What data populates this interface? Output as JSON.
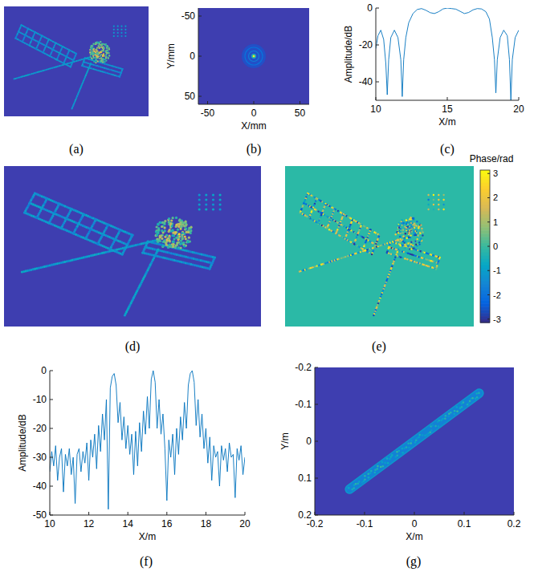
{
  "chart_data": [
    {
      "type": "image",
      "label": "(a)",
      "color": "#3e3eb0"
    },
    {
      "type": "image",
      "label": "(b)",
      "xlabel": "X/mm",
      "ylabel": "Y/mm",
      "xlim": [
        -60,
        60
      ],
      "ylim": [
        60,
        -60
      ],
      "xticks": [
        -50,
        0,
        50
      ],
      "yticks": [
        -50,
        0,
        50
      ],
      "peak": {
        "x": 0,
        "y": 0
      },
      "color": "#3e3eb0"
    },
    {
      "type": "line",
      "label": "(c)",
      "xlabel": "X/m",
      "ylabel": "Amplitude/dB",
      "xlim": [
        10,
        20
      ],
      "ylim": [
        -50,
        0
      ],
      "xticks": [
        10,
        15,
        20
      ],
      "yticks": [
        -40,
        -20,
        0
      ],
      "color": "#0072bd",
      "x": [
        10,
        10.15,
        10.35,
        10.55,
        10.7,
        10.8,
        10.9,
        11.05,
        11.3,
        11.55,
        11.75,
        11.85,
        11.95,
        12.1,
        12.3,
        12.6,
        12.9,
        13.2,
        13.5,
        13.8,
        14.1,
        14.4,
        14.7,
        15,
        15.3,
        15.6,
        15.9,
        16.2,
        16.5,
        16.8,
        17.1,
        17.4,
        17.7,
        17.95,
        18.15,
        18.3,
        18.4,
        18.5,
        18.7,
        18.95,
        19.2,
        19.35,
        19.45,
        19.55,
        19.75,
        20
      ],
      "values": [
        -22,
        -15,
        -12,
        -17,
        -30,
        -47,
        -28,
        -16,
        -12,
        -16,
        -28,
        -48,
        -28,
        -16,
        -8,
        -3,
        -0.8,
        -0.3,
        -1.2,
        -2.5,
        -3,
        -2,
        -0.5,
        0,
        -0.3,
        -0.6,
        -1.8,
        -3,
        -2.4,
        -1,
        -0.3,
        -0.5,
        -2,
        -6,
        -16,
        -28,
        -46,
        -28,
        -16,
        -12,
        -15,
        -28,
        -50,
        -28,
        -16,
        -12
      ]
    },
    {
      "type": "image",
      "label": "(d)",
      "color": "#3e3eb0"
    },
    {
      "type": "phase_map",
      "label": "(e)",
      "color": "#2bb9a6",
      "colorbar": {
        "label": "Phase/rad",
        "range": [
          -3.14,
          3.14
        ],
        "ticks": [
          3,
          2,
          1,
          0,
          -1,
          -2,
          -3
        ]
      }
    },
    {
      "type": "line",
      "label": "(f)",
      "xlabel": "X/m",
      "ylabel": "Amplitude/dB",
      "xlim": [
        10,
        20
      ],
      "ylim": [
        -50,
        0
      ],
      "xticks": [
        10,
        12,
        14,
        16,
        18,
        20
      ],
      "yticks": [
        -50,
        -40,
        -30,
        -20,
        -10,
        0
      ],
      "color": "#0072bd",
      "x": [
        10,
        10.1,
        10.2,
        10.3,
        10.4,
        10.5,
        10.6,
        10.7,
        10.8,
        10.9,
        11,
        11.1,
        11.2,
        11.3,
        11.4,
        11.5,
        11.6,
        11.7,
        11.8,
        11.9,
        12,
        12.1,
        12.2,
        12.3,
        12.4,
        12.5,
        12.6,
        12.7,
        12.8,
        12.9,
        13,
        13.1,
        13.2,
        13.3,
        13.4,
        13.5,
        13.6,
        13.7,
        13.8,
        13.9,
        14,
        14.1,
        14.2,
        14.3,
        14.4,
        14.5,
        14.6,
        14.7,
        14.8,
        14.9,
        15,
        15.1,
        15.2,
        15.3,
        15.4,
        15.5,
        15.6,
        15.7,
        15.8,
        15.9,
        16,
        16.1,
        16.2,
        16.3,
        16.4,
        16.5,
        16.6,
        16.7,
        16.8,
        16.9,
        17,
        17.1,
        17.2,
        17.3,
        17.4,
        17.5,
        17.6,
        17.7,
        17.8,
        17.9,
        18,
        18.1,
        18.2,
        18.3,
        18.4,
        18.5,
        18.6,
        18.7,
        18.8,
        18.9,
        19,
        19.1,
        19.2,
        19.3,
        19.4,
        19.5,
        19.6,
        19.7,
        19.8,
        19.9,
        20
      ],
      "values": [
        -35,
        -28,
        -33,
        -26,
        -38,
        -30,
        -27,
        -42,
        -29,
        -33,
        -27,
        -36,
        -30,
        -46,
        -29,
        -27,
        -35,
        -28,
        -32,
        -25,
        -38,
        -24,
        -30,
        -22,
        -34,
        -19,
        -28,
        -15,
        -24,
        -10,
        -48,
        -6,
        -2,
        -1,
        -5,
        -18,
        -11,
        -24,
        -16,
        -27,
        -19,
        -29,
        -22,
        -36,
        -21,
        -33,
        -18,
        -28,
        -14,
        -22,
        -9,
        -20,
        -3,
        0,
        -4,
        -20,
        -10,
        -22,
        -15,
        -27,
        -45,
        -24,
        -30,
        -22,
        -36,
        -20,
        -29,
        -16,
        -24,
        -11,
        -20,
        -5,
        -1,
        0,
        -4,
        -19,
        -10,
        -23,
        -15,
        -27,
        -20,
        -32,
        -23,
        -38,
        -26,
        -30,
        -28,
        -40,
        -26,
        -31,
        -27,
        -35,
        -25,
        -30,
        -29,
        -44,
        -27,
        -31,
        -26,
        -36,
        -30
      ]
    },
    {
      "type": "image",
      "label": "(g)",
      "xlabel": "X/m",
      "ylabel": "Y/m",
      "xlim": [
        -0.2,
        0.2
      ],
      "ylim": [
        0.2,
        -0.2
      ],
      "xticks": [
        -0.2,
        -0.1,
        0,
        0.1,
        0.2
      ],
      "yticks": [
        -0.2,
        -0.1,
        0,
        0.1,
        0.2
      ],
      "segment": {
        "x": [
          -0.13,
          0.13
        ],
        "y": [
          0.13,
          -0.13
        ]
      },
      "color": "#3e3eb0"
    }
  ]
}
